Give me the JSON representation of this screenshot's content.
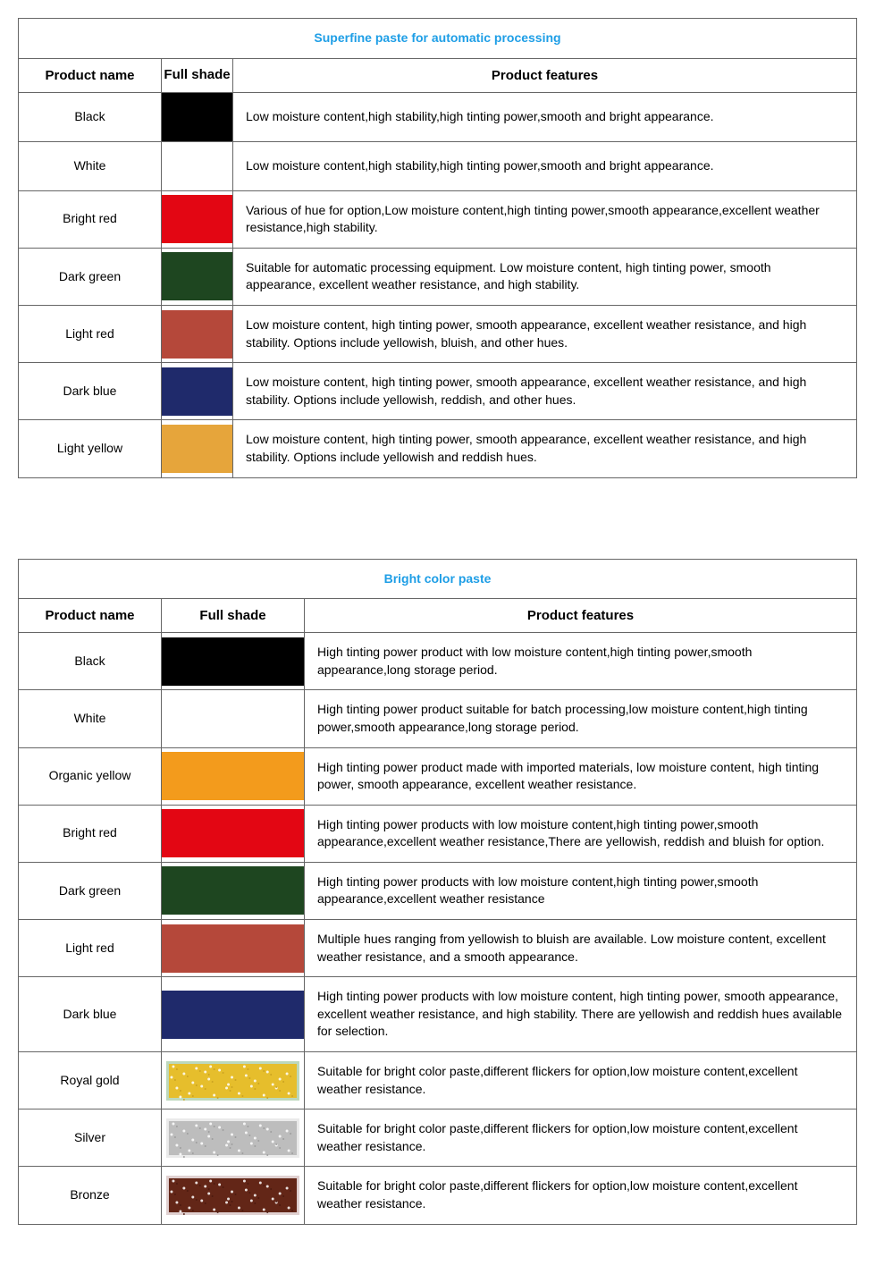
{
  "tables": [
    {
      "title": "Superfine paste for automatic processing",
      "title_color": "#1e9ee6",
      "shade_col_style": "narrow",
      "headers": {
        "name": "Product name",
        "shade": "Full shade",
        "features": "Product features"
      },
      "rows": [
        {
          "name": "Black",
          "swatch_color": "#000000",
          "swatch_type": "solid",
          "features": "Low moisture content,high stability,high tinting power,smooth and bright appearance."
        },
        {
          "name": "White",
          "swatch_color": "#ffffff",
          "swatch_type": "solid",
          "features": "Low moisture content,high stability,high tinting power,smooth and bright appearance."
        },
        {
          "name": "Bright red",
          "swatch_color": "#e30613",
          "swatch_type": "solid",
          "features": "Various of hue for option,Low moisture content,high tinting power,smooth appearance,excellent weather resistance,high stability."
        },
        {
          "name": "Dark green",
          "swatch_color": "#1e4620",
          "swatch_type": "solid",
          "features": "Suitable for automatic processing equipment. Low moisture content, high tinting power, smooth appearance, excellent weather resistance, and high stability."
        },
        {
          "name": "Light red",
          "swatch_color": "#b5483a",
          "swatch_type": "solid",
          "features": "Low moisture content, high tinting power, smooth appearance, excellent weather resistance, and high stability. Options include yellowish, bluish, and other hues."
        },
        {
          "name": "Dark blue",
          "swatch_color": "#1f2a6b",
          "swatch_type": "solid",
          "features": "Low moisture content, high tinting power, smooth appearance, excellent weather resistance, and high stability. Options include yellowish, reddish, and other hues."
        },
        {
          "name": "Light yellow",
          "swatch_color": "#e6a53b",
          "swatch_type": "solid",
          "features": "Low moisture content, high tinting power, smooth appearance, excellent weather resistance, and high stability. Options include yellowish and reddish hues."
        }
      ]
    },
    {
      "title": "Bright color paste",
      "title_color": "#1e9ee6",
      "shade_col_style": "wide",
      "headers": {
        "name": "Product name",
        "shade": "Full shade",
        "features": "Product features"
      },
      "rows": [
        {
          "name": "Black",
          "swatch_color": "#000000",
          "swatch_type": "solid",
          "features": "High tinting power product with low moisture content,high tinting power,smooth appearance,long storage period."
        },
        {
          "name": "White",
          "swatch_color": "#ffffff",
          "swatch_type": "solid",
          "features": "High tinting power product suitable for batch processing,low moisture content,high tinting power,smooth appearance,long storage period."
        },
        {
          "name": "Organic yellow",
          "swatch_color": "#f39b1c",
          "swatch_type": "solid",
          "features": "High tinting power product made with imported materials, low moisture content, high tinting power, smooth appearance, excellent weather resistance."
        },
        {
          "name": "Bright red",
          "swatch_color": "#e30613",
          "swatch_type": "solid",
          "features": "High tinting power products with low moisture content,high tinting power,smooth appearance,excellent weather resistance,There are yellowish, reddish and bluish for option."
        },
        {
          "name": "Dark green",
          "swatch_color": "#1e4620",
          "swatch_type": "solid",
          "features": "High tinting power products with low moisture content,high tinting power,smooth appearance,excellent weather resistance"
        },
        {
          "name": "Light red",
          "swatch_color": "#b5483a",
          "swatch_type": "solid",
          "features": "Multiple hues ranging from yellowish to bluish are available. Low moisture content, excellent weather resistance, and a smooth appearance."
        },
        {
          "name": "Dark blue",
          "swatch_color": "#1f2a6b",
          "swatch_type": "solid",
          "features": "High tinting power products with low moisture content, high tinting power, smooth appearance, excellent weather resistance, and high stability. There are yellowish and reddish hues available for selection."
        },
        {
          "name": "Royal gold",
          "swatch_color": "#f0c830",
          "swatch_color_2": "#c8a020",
          "swatch_border": "#bcd8bc",
          "swatch_type": "glitter",
          "features": "Suitable for bright color paste,different flickers for option,low moisture content,excellent weather resistance."
        },
        {
          "name": "Silver",
          "swatch_color": "#c8c8c8",
          "swatch_color_2": "#9a9a9a",
          "swatch_border": "#eaeaea",
          "swatch_type": "glitter",
          "features": "Suitable for bright color paste,different flickers for option,low moisture content,excellent weather resistance."
        },
        {
          "name": "Bronze",
          "swatch_color": "#6b2a1a",
          "swatch_color_2": "#4a1a10",
          "swatch_border": "#e0d0d0",
          "swatch_type": "glitter",
          "features": "Suitable for bright color paste,different flickers for option,low moisture content,excellent weather resistance."
        }
      ]
    }
  ]
}
